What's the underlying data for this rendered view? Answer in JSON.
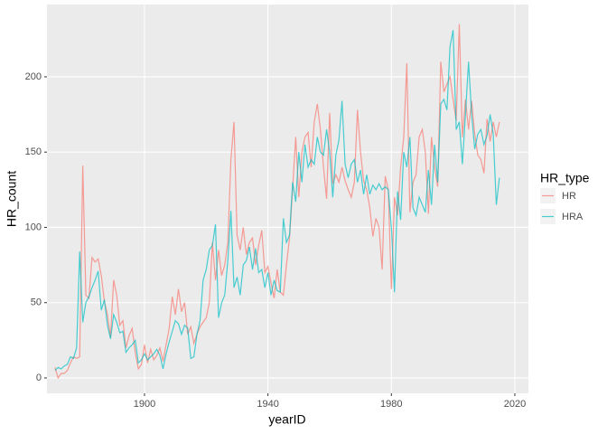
{
  "chart_data": {
    "type": "line",
    "x_label": "yearID",
    "y_label": "HR_count",
    "legend_title": "HR_type",
    "legend": "right",
    "grid": true,
    "xlim": [
      1868.4,
      2024.4
    ],
    "xticks": [
      1900,
      1940,
      1980,
      2020
    ],
    "ylim": [
      -10.2,
      248
    ],
    "yticks": [
      0,
      50,
      100,
      150,
      200
    ],
    "x": [
      1871,
      1872,
      1873,
      1874,
      1875,
      1876,
      1877,
      1878,
      1879,
      1880,
      1881,
      1882,
      1883,
      1884,
      1885,
      1886,
      1887,
      1888,
      1889,
      1890,
      1891,
      1892,
      1893,
      1894,
      1895,
      1896,
      1897,
      1898,
      1899,
      1900,
      1901,
      1902,
      1903,
      1904,
      1905,
      1906,
      1907,
      1908,
      1909,
      1910,
      1911,
      1912,
      1913,
      1914,
      1915,
      1916,
      1917,
      1918,
      1919,
      1920,
      1921,
      1922,
      1923,
      1924,
      1925,
      1926,
      1927,
      1928,
      1929,
      1930,
      1931,
      1932,
      1933,
      1934,
      1935,
      1936,
      1937,
      1938,
      1939,
      1940,
      1941,
      1942,
      1943,
      1944,
      1945,
      1946,
      1947,
      1948,
      1949,
      1950,
      1951,
      1952,
      1953,
      1954,
      1955,
      1956,
      1957,
      1958,
      1959,
      1960,
      1961,
      1962,
      1963,
      1964,
      1965,
      1966,
      1967,
      1968,
      1969,
      1970,
      1971,
      1972,
      1973,
      1974,
      1975,
      1976,
      1977,
      1978,
      1979,
      1980,
      1981,
      1982,
      1983,
      1984,
      1985,
      1986,
      1987,
      1988,
      1989,
      1990,
      1991,
      1992,
      1993,
      1994,
      1995,
      1996,
      1997,
      1998,
      1999,
      2000,
      2001,
      2002,
      2003,
      2004,
      2005,
      2006,
      2007,
      2008,
      2009,
      2010,
      2011,
      2012,
      2013,
      2014,
      2015
    ],
    "series": [
      {
        "name": "HR",
        "color": "#F8766D",
        "values": [
          7,
          0,
          3,
          3,
          5,
          10,
          14,
          13,
          14,
          141,
          55,
          53,
          80,
          77,
          79,
          68,
          51,
          42,
          27,
          65,
          55,
          35,
          38,
          20,
          28,
          33,
          17,
          6,
          9,
          22,
          10,
          19,
          12,
          15,
          20,
          11,
          22,
          33,
          54,
          42,
          59,
          44,
          50,
          29,
          34,
          23,
          29,
          34,
          37,
          40,
          50,
          90,
          65,
          85,
          68,
          75,
          90,
          145,
          170,
          95,
          85,
          100,
          82,
          90,
          93,
          75,
          88,
          98,
          70,
          74,
          63,
          53,
          72,
          57,
          55,
          75,
          93,
          126,
          160,
          120,
          150,
          160,
          163,
          140,
          170,
          182,
          165,
          140,
          119,
          176,
          129,
          135,
          130,
          140,
          131,
          125,
          120,
          130,
          178,
          150,
          131,
          125,
          113,
          94,
          106,
          100,
          72,
          134,
          125,
          59,
          120,
          108,
          140,
          160,
          209,
          110,
          130,
          135,
          160,
          165,
          150,
          109,
          160,
          140,
          127,
          210,
          190,
          195,
          200,
          185,
          171,
          235,
          160,
          185,
          165,
          184,
          162,
          148,
          145,
          136,
          172,
          157,
          170,
          160,
          170
        ]
      },
      {
        "name": "HRA",
        "color": "#00BFC4",
        "values": [
          5,
          7,
          6,
          8,
          9,
          14,
          13,
          20,
          84,
          37,
          50,
          54,
          60,
          65,
          71,
          45,
          52,
          35,
          26,
          42,
          37,
          30,
          31,
          17,
          20,
          22,
          25,
          10,
          12,
          16,
          12,
          14,
          16,
          19,
          15,
          6,
          16,
          24,
          31,
          38,
          36,
          29,
          35,
          33,
          13,
          14,
          29,
          38,
          65,
          72,
          85,
          88,
          102,
          40,
          50,
          55,
          78,
          111,
          60,
          67,
          55,
          75,
          78,
          87,
          72,
          86,
          70,
          72,
          60,
          70,
          55,
          65,
          58,
          57,
          106,
          90,
          95,
          130,
          117,
          150,
          130,
          155,
          140,
          145,
          142,
          160,
          150,
          148,
          165,
          150,
          120,
          148,
          158,
          184,
          142,
          133,
          142,
          145,
          130,
          138,
          122,
          135,
          122,
          128,
          125,
          129,
          125,
          127,
          125,
          100,
          57,
          124,
          105,
          150,
          140,
          160,
          113,
          108,
          120,
          115,
          110,
          138,
          115,
          155,
          130,
          182,
          185,
          178,
          220,
          231,
          165,
          170,
          142,
          175,
          210,
          175,
          152,
          162,
          165,
          155,
          161,
          175,
          162,
          115,
          133
        ]
      }
    ]
  }
}
